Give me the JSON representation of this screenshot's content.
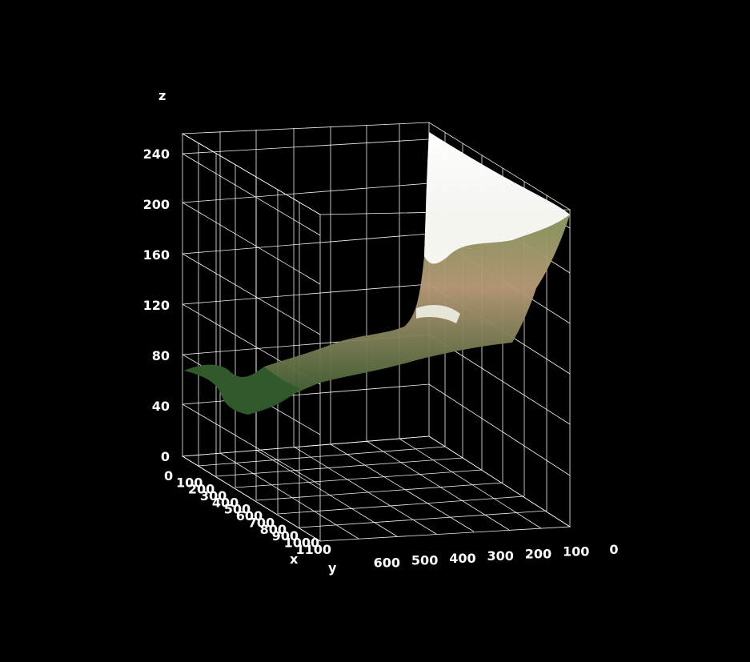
{
  "colors": {
    "background": "#000000",
    "grid": "#ffffff",
    "text": "#ffffff",
    "surface_low": "#2f5a2a",
    "surface_mid": "#b89a78",
    "surface_high": "#ffffff"
  },
  "chart_data": {
    "type": "surface3d",
    "title": "",
    "xlabel": "x",
    "ylabel": "y",
    "zlabel": "z",
    "x_ticks": [
      "0",
      "100",
      "200",
      "300",
      "400",
      "500",
      "600",
      "700",
      "800",
      "900",
      "1000",
      "1100"
    ],
    "y_ticks": [
      "600",
      "500",
      "400",
      "300",
      "200",
      "100",
      "0"
    ],
    "z_ticks": [
      "0",
      "40",
      "80",
      "120",
      "160",
      "200",
      "240"
    ],
    "xlim": [
      0,
      1150
    ],
    "ylim": [
      0,
      660
    ],
    "zlim": [
      0,
      255
    ],
    "grid": true,
    "surface_profile": {
      "description_x": [
        0,
        100,
        200,
        300,
        400,
        500,
        600,
        700,
        800,
        900,
        1000,
        1100
      ],
      "z_along_y": [
        {
          "y": 660,
          "z": 68
        },
        {
          "y": 600,
          "z": 60
        },
        {
          "y": 550,
          "z": 40
        },
        {
          "y": 500,
          "z": 55
        },
        {
          "y": 400,
          "z": 78
        },
        {
          "y": 300,
          "z": 92
        },
        {
          "y": 200,
          "z": 110
        },
        {
          "y": 150,
          "z": 130
        },
        {
          "y": 100,
          "z": 230
        },
        {
          "y": 50,
          "z": 235
        },
        {
          "y": 0,
          "z": 240
        }
      ]
    }
  }
}
